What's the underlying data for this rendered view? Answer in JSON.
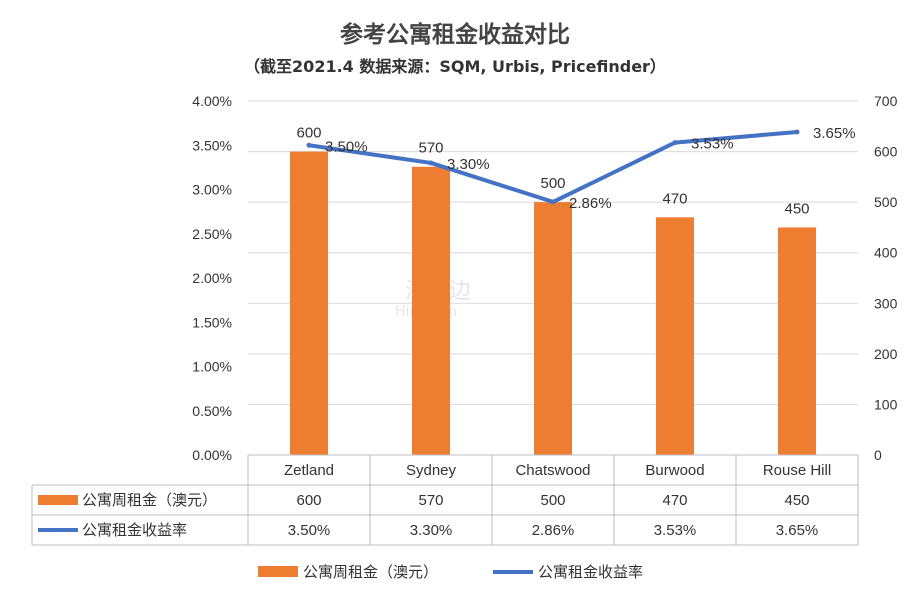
{
  "chart_data": {
    "type": "bar",
    "title": "参考公寓租金收益对比",
    "subtitle": "（截至2021.4  数据来源：SQM, Urbis, Pricefinder）",
    "categories": [
      "Zetland",
      "Sydney",
      "Chatswood",
      "Burwood",
      "Rouse Hill"
    ],
    "series": [
      {
        "name": "公寓周租金（澳元）",
        "type": "bar",
        "axis": "right",
        "color": "#ED7D31",
        "values": [
          600,
          570,
          500,
          470,
          450
        ],
        "labels": [
          "600",
          "570",
          "500",
          "470",
          "450"
        ]
      },
      {
        "name": "公寓租金收益率",
        "type": "line",
        "axis": "left",
        "color": "#4472C4",
        "values": [
          3.5,
          3.3,
          2.86,
          3.53,
          3.65
        ],
        "labels": [
          "3.50%",
          "3.30%",
          "2.86%",
          "3.53%",
          "3.65%"
        ]
      }
    ],
    "y_left": {
      "ylim": [
        0,
        4.0
      ],
      "ticks": [
        "0.00%",
        "0.50%",
        "1.00%",
        "1.50%",
        "2.00%",
        "2.50%",
        "3.00%",
        "3.50%",
        "4.00%"
      ]
    },
    "y_right": {
      "ylim": [
        0,
        700
      ],
      "ticks": [
        "0",
        "100",
        "200",
        "300",
        "400",
        "500",
        "600",
        "700"
      ]
    },
    "grid": true,
    "legend": "bottom",
    "data_table": true,
    "watermark": [
      "海那边",
      "Hinabian"
    ]
  }
}
